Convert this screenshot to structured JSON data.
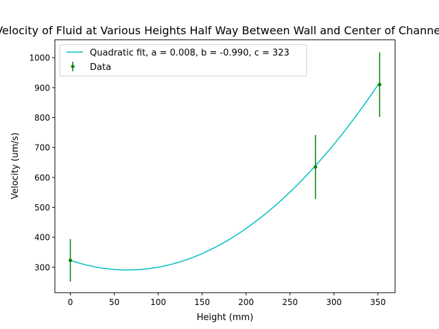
{
  "chart_data": {
    "type": "scatter",
    "title": "Velocity of Fluid at Various Heights Half Way Between Wall and Center of Channel",
    "xlabel": "Height (mm)",
    "ylabel": "Velocity (um/s)",
    "xlim": [
      -17.6,
      369.6
    ],
    "ylim": [
      215,
      1060
    ],
    "xticks": [
      0,
      50,
      100,
      150,
      200,
      250,
      300,
      350
    ],
    "yticks": [
      300,
      400,
      500,
      600,
      700,
      800,
      900,
      1000
    ],
    "grid": false,
    "legend_position": "top-left",
    "series": [
      {
        "name": "Data",
        "kind": "errorbar",
        "color": "#008000",
        "x": [
          0,
          279,
          352
        ],
        "y": [
          323,
          635,
          910
        ],
        "yerr": [
          71,
          107,
          108
        ]
      },
      {
        "name": "Quadratic fit, a = 0.008, b = -0.990, c = 323",
        "kind": "line",
        "color": "#00bfbf",
        "coefficients": {
          "a": 0.00761,
          "b": -0.99,
          "c": 323
        },
        "x_range": [
          0,
          352
        ]
      }
    ]
  }
}
